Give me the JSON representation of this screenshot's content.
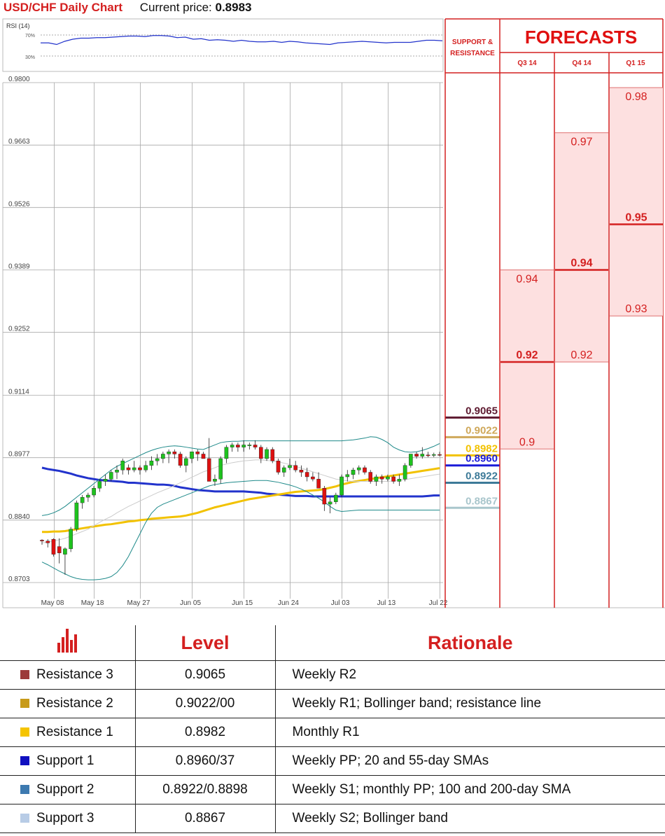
{
  "header": {
    "title": "USD/CHF Daily Chart",
    "price_label": "Current price:",
    "price_value": "0.8983"
  },
  "rsi": {
    "label": "RSI (14)",
    "levels": [
      "70%",
      "30%"
    ],
    "values": [
      55,
      55,
      52,
      58,
      62,
      64,
      64,
      65,
      65,
      66,
      67,
      68,
      68,
      67,
      69,
      69,
      68,
      65,
      66,
      62,
      63,
      60,
      61,
      60,
      58,
      60,
      58,
      57,
      57,
      58,
      56,
      58,
      57,
      55,
      54,
      53,
      52,
      55,
      56,
      57,
      58,
      57,
      56,
      55,
      56,
      56,
      56,
      58,
      60,
      60,
      59
    ]
  },
  "chart_data": {
    "type": "candlestick",
    "title": "USD/CHF Daily Chart",
    "y_ticks": [
      "0.9800",
      "0.9663",
      "0.9526",
      "0.9389",
      "0.9252",
      "0.9114",
      "0.8977",
      "0.8840",
      "0.8703"
    ],
    "ylim": [
      0.8703,
      0.98
    ],
    "x_ticks": [
      "May 08",
      "May 18",
      "May 27",
      "Jun 05",
      "Jun 15",
      "Jun 24",
      "Jul 03",
      "Jul 13",
      "Jul 22"
    ],
    "grid": true,
    "candles": [
      [
        0.8796,
        0.8798,
        0.8786,
        0.8794
      ],
      [
        0.8794,
        0.8798,
        0.878,
        0.879
      ],
      [
        0.8798,
        0.88,
        0.876,
        0.8765
      ],
      [
        0.8782,
        0.88,
        0.8745,
        0.8768
      ],
      [
        0.8765,
        0.878,
        0.872,
        0.8777
      ],
      [
        0.8777,
        0.8825,
        0.877,
        0.882
      ],
      [
        0.882,
        0.8883,
        0.8815,
        0.8878
      ],
      [
        0.8878,
        0.8895,
        0.8865,
        0.889
      ],
      [
        0.889,
        0.89,
        0.888,
        0.8895
      ],
      [
        0.8895,
        0.8915,
        0.889,
        0.891
      ],
      [
        0.891,
        0.893,
        0.8902,
        0.8925
      ],
      [
        0.8925,
        0.894,
        0.8915,
        0.893
      ],
      [
        0.893,
        0.895,
        0.8925,
        0.8945
      ],
      [
        0.8945,
        0.896,
        0.893,
        0.895
      ],
      [
        0.895,
        0.8975,
        0.894,
        0.897
      ],
      [
        0.8955,
        0.8962,
        0.894,
        0.895
      ],
      [
        0.895,
        0.897,
        0.8945,
        0.8955
      ],
      [
        0.8955,
        0.896,
        0.894,
        0.895
      ],
      [
        0.895,
        0.897,
        0.8945,
        0.896
      ],
      [
        0.896,
        0.898,
        0.895,
        0.897
      ],
      [
        0.897,
        0.8985,
        0.896,
        0.8975
      ],
      [
        0.8975,
        0.899,
        0.8965,
        0.8985
      ],
      [
        0.8985,
        0.8995,
        0.8965,
        0.899
      ],
      [
        0.899,
        0.8995,
        0.8975,
        0.8985
      ],
      [
        0.8985,
        0.899,
        0.8955,
        0.896
      ],
      [
        0.896,
        0.898,
        0.8945,
        0.8975
      ],
      [
        0.8975,
        0.899,
        0.8965,
        0.899
      ],
      [
        0.899,
        0.8995,
        0.897,
        0.8985
      ],
      [
        0.8985,
        0.899,
        0.8975,
        0.8975
      ],
      [
        0.8975,
        0.902,
        0.893,
        0.8925
      ],
      [
        0.8925,
        0.894,
        0.8915,
        0.893
      ],
      [
        0.893,
        0.898,
        0.892,
        0.8975
      ],
      [
        0.8975,
        0.9005,
        0.8965,
        0.9
      ],
      [
        0.9,
        0.901,
        0.899,
        0.9005
      ],
      [
        0.9005,
        0.901,
        0.899,
        0.9
      ],
      [
        0.9,
        0.9015,
        0.899,
        0.9005
      ],
      [
        0.9005,
        0.901,
        0.8995,
        0.9005
      ],
      [
        0.9005,
        0.9015,
        0.8995,
        0.9
      ],
      [
        0.9,
        0.9005,
        0.8965,
        0.8975
      ],
      [
        0.8975,
        0.9,
        0.897,
        0.8995
      ],
      [
        0.8995,
        0.9,
        0.8965,
        0.897
      ],
      [
        0.897,
        0.8975,
        0.894,
        0.8945
      ],
      [
        0.8945,
        0.896,
        0.8935,
        0.8955
      ],
      [
        0.8955,
        0.8975,
        0.895,
        0.896
      ],
      [
        0.896,
        0.897,
        0.8945,
        0.895
      ],
      [
        0.895,
        0.896,
        0.8935,
        0.8945
      ],
      [
        0.8945,
        0.8955,
        0.8925,
        0.8935
      ],
      [
        0.8935,
        0.8945,
        0.8925,
        0.893
      ],
      [
        0.893,
        0.8945,
        0.891,
        0.891
      ],
      [
        0.891,
        0.8915,
        0.886,
        0.8875
      ],
      [
        0.8875,
        0.889,
        0.8855,
        0.888
      ],
      [
        0.888,
        0.89,
        0.8875,
        0.8895
      ],
      [
        0.8895,
        0.894,
        0.889,
        0.8935
      ],
      [
        0.8935,
        0.895,
        0.8925,
        0.894
      ],
      [
        0.894,
        0.8955,
        0.893,
        0.895
      ],
      [
        0.895,
        0.896,
        0.894,
        0.8955
      ],
      [
        0.8955,
        0.896,
        0.894,
        0.8945
      ],
      [
        0.8945,
        0.895,
        0.892,
        0.8925
      ],
      [
        0.8925,
        0.894,
        0.8915,
        0.8935
      ],
      [
        0.8935,
        0.894,
        0.892,
        0.893
      ],
      [
        0.893,
        0.894,
        0.8925,
        0.8935
      ],
      [
        0.8935,
        0.894,
        0.892,
        0.8925
      ],
      [
        0.8925,
        0.894,
        0.8915,
        0.893
      ],
      [
        0.893,
        0.8965,
        0.8925,
        0.896
      ],
      [
        0.896,
        0.8985,
        0.8955,
        0.8985
      ],
      [
        0.8985,
        0.899,
        0.8975,
        0.898
      ],
      [
        0.898,
        0.9,
        0.8975,
        0.8985
      ],
      [
        0.8983,
        0.899,
        0.8978,
        0.8982
      ],
      [
        0.8982,
        0.8988,
        0.8978,
        0.8984
      ],
      [
        0.8984,
        0.899,
        0.898,
        0.8983
      ]
    ],
    "indicators": [
      {
        "color": "#2233cc",
        "width": 3,
        "values": [
          0.8955,
          0.8952,
          0.895,
          0.8948,
          0.8945,
          0.8942,
          0.8938,
          0.8935,
          0.8932,
          0.893,
          0.8928,
          0.8927,
          0.8926,
          0.8925,
          0.8924,
          0.8922,
          0.8922,
          0.8921,
          0.892,
          0.8919,
          0.8918,
          0.8918,
          0.8917,
          0.8915,
          0.8912,
          0.891,
          0.8908,
          0.8906,
          0.8905,
          0.8904,
          0.8903,
          0.8903,
          0.8903,
          0.8903,
          0.8903,
          0.8903,
          0.8902,
          0.8901,
          0.89,
          0.8898,
          0.8897,
          0.8896,
          0.8895,
          0.8894,
          0.8893,
          0.8893,
          0.8893,
          0.8892,
          0.8892,
          0.8892,
          0.8892,
          0.8892,
          0.8892,
          0.8892,
          0.8892,
          0.8892,
          0.8892,
          0.8892,
          0.8892,
          0.8892,
          0.8892,
          0.8892,
          0.8892,
          0.8892,
          0.8892,
          0.8892,
          0.8892,
          0.8893,
          0.8894,
          0.8894
        ]
      },
      {
        "color": "#f2c200",
        "width": 3,
        "values": [
          0.8814,
          0.8814,
          0.8815,
          0.8815,
          0.8816,
          0.8818,
          0.882,
          0.8822,
          0.8824,
          0.8826,
          0.8828,
          0.883,
          0.8831,
          0.8833,
          0.8835,
          0.8837,
          0.8838,
          0.884,
          0.8841,
          0.8843,
          0.8844,
          0.8845,
          0.8846,
          0.8847,
          0.8848,
          0.885,
          0.8853,
          0.8856,
          0.886,
          0.8864,
          0.8868,
          0.8871,
          0.8874,
          0.8877,
          0.888,
          0.8883,
          0.8886,
          0.8888,
          0.889,
          0.8892,
          0.8894,
          0.8896,
          0.8898,
          0.89,
          0.8902,
          0.8903,
          0.8904,
          0.8905,
          0.8906,
          0.8908,
          0.8911,
          0.8914,
          0.8918,
          0.8921,
          0.8924,
          0.8926,
          0.8928,
          0.893,
          0.8932,
          0.8934,
          0.8936,
          0.8938,
          0.894,
          0.8942,
          0.8944,
          0.8946,
          0.8948,
          0.895,
          0.8952,
          0.8954
        ]
      },
      {
        "color": "#cccccc",
        "width": 1,
        "values": [
          0.879,
          0.8792,
          0.8794,
          0.8797,
          0.88,
          0.8805,
          0.881,
          0.8815,
          0.882,
          0.8828,
          0.8835,
          0.8842,
          0.8848,
          0.8856,
          0.8863,
          0.887,
          0.8876,
          0.8882,
          0.8888,
          0.8894,
          0.89,
          0.8905,
          0.891,
          0.8916,
          0.8922,
          0.8928,
          0.8934,
          0.894,
          0.8946,
          0.895,
          0.8955,
          0.896,
          0.8963,
          0.8966,
          0.8968,
          0.897,
          0.8971,
          0.8972,
          0.8972,
          0.8971,
          0.897,
          0.8968,
          0.8965,
          0.8962,
          0.8958,
          0.8954,
          0.895,
          0.8946,
          0.8942,
          0.8938,
          0.8934,
          0.893,
          0.8928,
          0.8926,
          0.8925,
          0.8925,
          0.8925,
          0.8925,
          0.8925,
          0.8925,
          0.8925,
          0.8926,
          0.8927,
          0.8929,
          0.8931,
          0.8933,
          0.8935,
          0.8937,
          0.8939,
          0.8941
        ]
      },
      {
        "color": "#1f8a8a",
        "width": 1,
        "values": [
          0.885,
          0.8852,
          0.8856,
          0.8862,
          0.887,
          0.888,
          0.889,
          0.89,
          0.891,
          0.892,
          0.893,
          0.894,
          0.895,
          0.8958,
          0.8964,
          0.897,
          0.8976,
          0.8982,
          0.8988,
          0.8993,
          0.8997,
          0.9,
          0.9002,
          0.9003,
          0.9002,
          0.9,
          0.8998,
          0.8996,
          0.8995,
          0.9,
          0.9005,
          0.901,
          0.9012,
          0.9013,
          0.9013,
          0.9014,
          0.9014,
          0.9014,
          0.9014,
          0.9014,
          0.9014,
          0.9014,
          0.9014,
          0.9014,
          0.9014,
          0.9014,
          0.9014,
          0.9014,
          0.9014,
          0.9014,
          0.9014,
          0.9014,
          0.9014,
          0.9015,
          0.9016,
          0.9018,
          0.902,
          0.9023,
          0.9022,
          0.9017,
          0.901,
          0.9,
          0.8994,
          0.899,
          0.8989,
          0.899,
          0.8993,
          0.8997,
          0.9002,
          0.9008
        ]
      },
      {
        "color": "#1f8a8a",
        "width": 1,
        "values": [
          0.8748,
          0.8742,
          0.8735,
          0.8728,
          0.8722,
          0.8716,
          0.8712,
          0.871,
          0.8709,
          0.8709,
          0.871,
          0.8712,
          0.8716,
          0.8725,
          0.874,
          0.876,
          0.8785,
          0.881,
          0.8835,
          0.8855,
          0.8868,
          0.8875,
          0.888,
          0.8885,
          0.889,
          0.8895,
          0.89,
          0.8905,
          0.891,
          0.8915,
          0.8918,
          0.892,
          0.8922,
          0.8923,
          0.8924,
          0.8925,
          0.8926,
          0.8927,
          0.8927,
          0.8927,
          0.8925,
          0.8923,
          0.892,
          0.8917,
          0.8913,
          0.8908,
          0.8902,
          0.8895,
          0.8888,
          0.888,
          0.887,
          0.8862,
          0.8859,
          0.886,
          0.8861,
          0.8862,
          0.8862,
          0.8862,
          0.8862,
          0.8862,
          0.8862,
          0.8862,
          0.8862,
          0.8862,
          0.8862,
          0.8862,
          0.8862,
          0.8862,
          0.8862,
          0.8862
        ]
      }
    ],
    "levels": [
      {
        "value": 0.9065,
        "label": "0.9065",
        "color": "#5e1a30"
      },
      {
        "value": 0.9022,
        "label": "0.9022",
        "color": "#cfa85a"
      },
      {
        "value": 0.8982,
        "label": "0.8982",
        "color": "#f2c200"
      },
      {
        "value": 0.896,
        "label": "0.8960",
        "color": "#1a1ad8"
      },
      {
        "value": 0.8922,
        "label": "0.8922",
        "color": "#3d7a98"
      },
      {
        "value": 0.8867,
        "label": "0.8867",
        "color": "#a9c6cc"
      }
    ]
  },
  "sr_header": {
    "line1": "SUPPORT &",
    "line2": "RESISTANCE"
  },
  "forecasts": {
    "title": "FORECASTS",
    "columns": [
      {
        "label": "Q3 14",
        "high": "0.94",
        "mid": "0.92",
        "low": "0.9",
        "high_v": 0.9389,
        "mid_v": 0.9187,
        "low_v": 0.8996
      },
      {
        "label": "Q4 14",
        "high": "0.97",
        "mid": "0.94",
        "low": "0.92",
        "high_v": 0.969,
        "mid_v": 0.9389,
        "low_v": 0.9187
      },
      {
        "label": "Q1 15",
        "high": "0.98",
        "mid": "0.95",
        "low": "0.93",
        "high_v": 0.9789,
        "mid_v": 0.9489,
        "low_v": 0.9288
      }
    ]
  },
  "levels_table": {
    "header": {
      "level": "Level",
      "rationale": "Rationale"
    },
    "rows": [
      {
        "name": "Resistance 3",
        "value": "0.9065",
        "rationale": "Weekly R2",
        "color": "#9c3a3a"
      },
      {
        "name": "Resistance 2",
        "value": "0.9022/00",
        "rationale": "Weekly R1; Bollinger band; resistance line",
        "color": "#c89b1a"
      },
      {
        "name": "Resistance 1",
        "value": "0.8982",
        "rationale": "Monthly R1",
        "color": "#f5c400"
      },
      {
        "name": "Support 1",
        "value": "0.8960/37",
        "rationale": "Weekly PP; 20 and 55-day SMAs",
        "color": "#1010c0"
      },
      {
        "name": "Support 2",
        "value": "0.8922/0.8898",
        "rationale": "Weekly S1; monthly PP; 100 and 200-day SMA",
        "color": "#3d7ab0"
      },
      {
        "name": "Support 3",
        "value": "0.8867",
        "rationale": "Weekly S2; Bollinger band",
        "color": "#b8cce6"
      }
    ]
  }
}
